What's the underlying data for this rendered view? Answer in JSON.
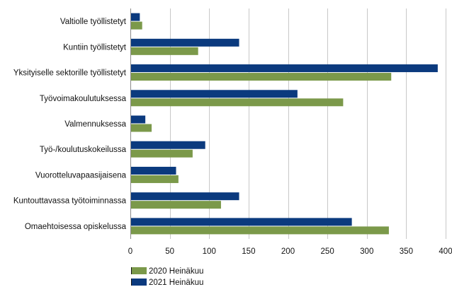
{
  "chart_data": {
    "type": "bar",
    "orientation": "horizontal",
    "categories": [
      "Valtiolle työllistetyt",
      "Kuntiin työllistetyt",
      "Yksityiselle sektorille työllistetyt",
      "Työvoimakoulutuksessa",
      "Valmennuksessa",
      "Työ-/koulutuskokeilussa",
      "Vuorotteluvapaasijaisena",
      "Kuntouttavassa työtoiminnassa",
      "Omaehtoisessa opiskelussa"
    ],
    "series": [
      {
        "name": "2021 Heinäkuu",
        "color": "#0b3a7e",
        "values": [
          12,
          138,
          390,
          212,
          19,
          95,
          58,
          138,
          281
        ]
      },
      {
        "name": "2020 Heinäkuu",
        "color": "#7b994a",
        "values": [
          15,
          86,
          331,
          270,
          27,
          79,
          61,
          115,
          328
        ]
      }
    ],
    "xlim": [
      0,
      400
    ],
    "xticks": [
      "0",
      "50",
      "100",
      "150",
      "200",
      "250",
      "300",
      "350",
      "400"
    ],
    "grid": true,
    "legend_position": "bottom-left",
    "legend": [
      {
        "label": "2020 Heinäkuu",
        "color": "#7b994a"
      },
      {
        "label": "2021 Heinäkuu",
        "color": "#0b3a7e"
      }
    ]
  }
}
